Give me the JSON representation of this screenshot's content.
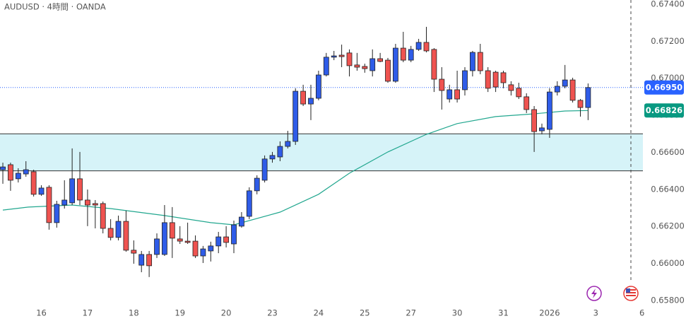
{
  "chart_data": {
    "type": "candlestick",
    "title": "AUDUSD · 4時間 · OANDA",
    "up_color": "#2f5ce8",
    "down_color": "#ef5350",
    "candles": {
      "open": [
        0.66506,
        0.66533,
        0.66457,
        0.66483,
        0.66495,
        0.66373,
        0.66411,
        0.6622,
        0.66315,
        0.66327,
        0.66457,
        0.66342,
        0.66323,
        0.66323,
        0.66189,
        0.6614,
        0.66227,
        0.66071,
        0.6599,
        0.66048,
        0.66048,
        0.66048,
        0.6622,
        0.66132,
        0.6612,
        0.6612,
        0.6604,
        0.66067,
        0.66094,
        0.66143,
        0.66105,
        0.66201,
        0.66254,
        0.66392,
        0.66449,
        0.66564,
        0.66575,
        0.66632,
        0.66659,
        0.6693,
        0.66861,
        0.66892,
        0.67018,
        0.67114,
        0.67125,
        0.67137,
        0.67072,
        0.67064,
        0.67041,
        0.67106,
        0.67098,
        0.66984,
        0.67163,
        0.67098,
        0.67156,
        0.67194,
        0.67156,
        0.66995,
        0.66888,
        0.66938,
        0.66938,
        0.67041,
        0.6714,
        0.67041,
        0.67033,
        0.6703,
        0.66965,
        0.66946,
        0.669,
        0.66831,
        0.66716,
        0.66724,
        0.66926,
        0.66957,
        0.66991,
        0.66881,
        0.66842
      ],
      "high": [
        0.66544,
        0.66544,
        0.66514,
        0.66552,
        0.66506,
        0.66422,
        0.66422,
        0.66338,
        0.66449,
        0.66621,
        0.66602,
        0.66399,
        0.66342,
        0.66334,
        0.66239,
        0.66258,
        0.66285,
        0.66124,
        0.66067,
        0.66067,
        0.66162,
        0.66315,
        0.66304,
        0.66201,
        0.6622,
        0.66151,
        0.66094,
        0.66117,
        0.6617,
        0.66201,
        0.66231,
        0.66277,
        0.66411,
        0.66476,
        0.66583,
        0.66602,
        0.66659,
        0.66716,
        0.66946,
        0.66965,
        0.66965,
        0.67041,
        0.67137,
        0.67148,
        0.67182,
        0.67156,
        0.67137,
        0.67079,
        0.67156,
        0.67137,
        0.6711,
        0.67186,
        0.67251,
        0.67175,
        0.67213,
        0.67278,
        0.67163,
        0.6706,
        0.66965,
        0.67041,
        0.6706,
        0.67148,
        0.67186,
        0.6706,
        0.67041,
        0.67041,
        0.66984,
        0.66976,
        0.66919,
        0.6685,
        0.66755,
        0.66946,
        0.66984,
        0.67072,
        0.67003,
        0.66888,
        0.66972
      ],
      "low": [
        0.6643,
        0.66392,
        0.66437,
        0.66468,
        0.66361,
        0.66365,
        0.66182,
        0.66193,
        0.66296,
        0.66315,
        0.66315,
        0.66201,
        0.66189,
        0.66162,
        0.66124,
        0.66124,
        0.66063,
        0.65998,
        0.65952,
        0.65926,
        0.66029,
        0.6604,
        0.66029,
        0.66105,
        0.66105,
        0.66029,
        0.66002,
        0.6601,
        0.66055,
        0.66086,
        0.66055,
        0.66193,
        0.66239,
        0.66373,
        0.66437,
        0.66544,
        0.66552,
        0.66621,
        0.6664,
        0.6685,
        0.66774,
        0.66881,
        0.6701,
        0.67098,
        0.6706,
        0.6701,
        0.67041,
        0.6703,
        0.6701,
        0.67087,
        0.66976,
        0.66976,
        0.67087,
        0.67087,
        0.67148,
        0.6714,
        0.66926,
        0.66831,
        0.66869,
        0.66869,
        0.66907,
        0.6701,
        0.67022,
        0.66926,
        0.66926,
        0.66946,
        0.66907,
        0.66888,
        0.66812,
        0.66602,
        0.66697,
        0.66678,
        0.66907,
        0.66946,
        0.66869,
        0.66793,
        0.66774
      ],
      "close": [
        0.66521,
        0.66449,
        0.66487,
        0.66506,
        0.66373,
        0.66407,
        0.6622,
        0.66319,
        0.66342,
        0.66457,
        0.66342,
        0.66315,
        0.66315,
        0.66189,
        0.6614,
        0.66227,
        0.66071,
        0.66055,
        0.66048,
        0.65987,
        0.66132,
        0.6622,
        0.66136,
        0.6612,
        0.66113,
        0.6604,
        0.66078,
        0.66094,
        0.66143,
        0.66113,
        0.66208,
        0.6625,
        0.66392,
        0.6646,
        0.66564,
        0.66583,
        0.66632,
        0.66659,
        0.6693,
        0.66861,
        0.66892,
        0.67018,
        0.67114,
        0.67121,
        0.67117,
        0.67068,
        0.6706,
        0.67052,
        0.67106,
        0.67091,
        0.66984,
        0.67163,
        0.67098,
        0.67156,
        0.67194,
        0.67148,
        0.66995,
        0.66934,
        0.66938,
        0.66888,
        0.67041,
        0.6714,
        0.67041,
        0.66946,
        0.66953,
        0.66976,
        0.66934,
        0.669,
        0.66831,
        0.66712,
        0.66732,
        0.66926,
        0.66957,
        0.66991,
        0.66881,
        0.66842,
        0.6695
      ]
    },
    "ma": {
      "color": "#22a78f",
      "x": [
        0,
        3.3,
        9,
        14,
        21,
        27,
        30,
        36,
        41,
        45,
        50,
        55,
        59,
        64,
        69,
        73,
        76
      ],
      "values": [
        0.66288,
        0.66304,
        0.66315,
        0.66296,
        0.66258,
        0.6622,
        0.66208,
        0.66277,
        0.66373,
        0.66487,
        0.66602,
        0.66697,
        0.66755,
        0.66793,
        0.66808,
        0.66823,
        0.66826
      ]
    },
    "zone": {
      "range": [
        0.665,
        0.667
      ],
      "color": "#d6f3f8"
    },
    "price_labels": [
      {
        "value": 0.6695,
        "label": "0.66950",
        "color": "#2962ff"
      },
      {
        "value": 0.66826,
        "label": "0.66826",
        "color": "#089981"
      }
    ],
    "xlim": [
      -0.37,
      83.12
    ],
    "ylim": [
      0.65742,
      0.67423
    ],
    "xticks": [
      {
        "value": 5,
        "label": "16"
      },
      {
        "value": 11,
        "label": "17"
      },
      {
        "value": 17,
        "label": "18"
      },
      {
        "value": 23,
        "label": "19"
      },
      {
        "value": 29,
        "label": "20"
      },
      {
        "value": 35,
        "label": "23"
      },
      {
        "value": 41,
        "label": "24"
      },
      {
        "value": 47,
        "label": "25"
      },
      {
        "value": 53,
        "label": "27"
      },
      {
        "value": 59,
        "label": "30"
      },
      {
        "value": 65,
        "label": "31"
      },
      {
        "value": 71,
        "label": "2026"
      },
      {
        "value": 77,
        "label": "3"
      },
      {
        "value": 83,
        "label": "6"
      }
    ],
    "yticks": [
      {
        "value": 0.674,
        "label": "0.67400"
      },
      {
        "value": 0.672,
        "label": "0.67200"
      },
      {
        "value": 0.67,
        "label": "0.67000"
      },
      {
        "value": 0.668,
        "label": "0.66800"
      },
      {
        "value": 0.666,
        "label": "0.66600"
      },
      {
        "value": 0.664,
        "label": "0.66400"
      },
      {
        "value": 0.662,
        "label": "0.66200"
      },
      {
        "value": 0.66,
        "label": "0.66000"
      },
      {
        "value": 0.658,
        "label": "0.65800"
      }
    ]
  }
}
